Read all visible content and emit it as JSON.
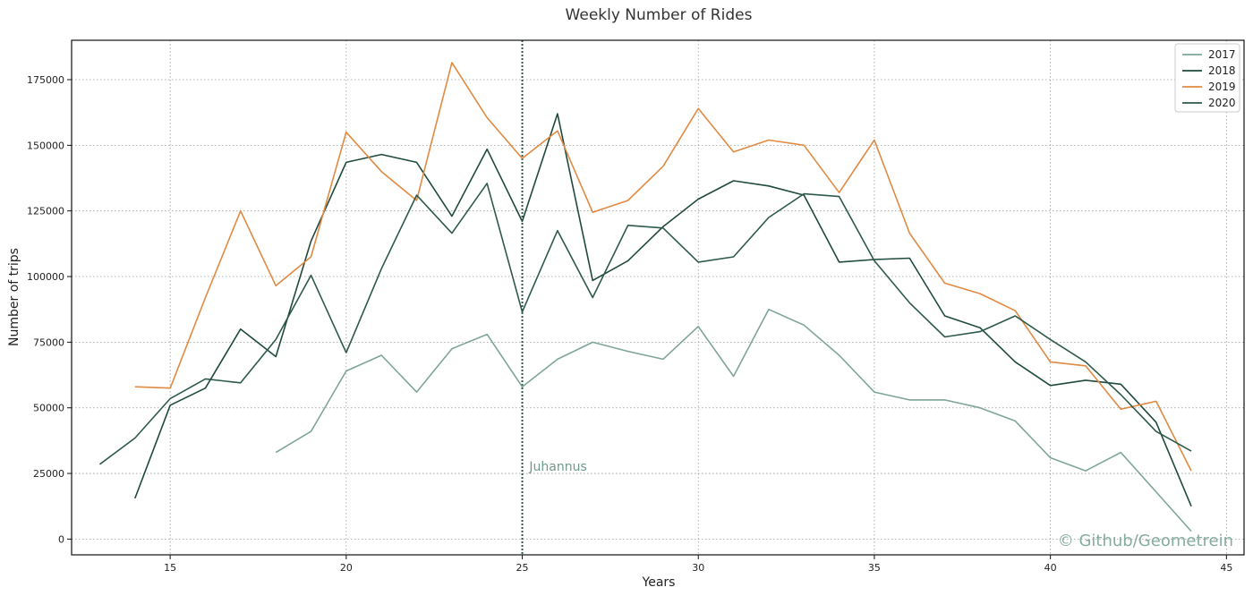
{
  "chart_data": {
    "type": "line",
    "title": "Weekly Number of Rides",
    "xlabel": "Years",
    "ylabel": "Number of trips",
    "xlim": [
      12.2,
      45.5
    ],
    "ylim": [
      -6000,
      190000
    ],
    "xticks": [
      15,
      20,
      25,
      30,
      35,
      40,
      45
    ],
    "yticks": [
      0,
      25000,
      50000,
      75000,
      100000,
      125000,
      150000,
      175000
    ],
    "grid": true,
    "legend": "top-right",
    "series": [
      {
        "name": "2017",
        "color": "#7fa597",
        "x": [
          18,
          19,
          20,
          21,
          22,
          23,
          24,
          25,
          26,
          27,
          28,
          29,
          30,
          31,
          32,
          33,
          34,
          35,
          36,
          37,
          38,
          39,
          40,
          41,
          42,
          43,
          44
        ],
        "y": [
          33000,
          41000,
          64000,
          70000,
          56000,
          72500,
          78000,
          58000,
          68500,
          75000,
          71500,
          68500,
          81000,
          62000,
          87500,
          81500,
          70000,
          56000,
          53000,
          53000,
          50000,
          45000,
          31000,
          26000,
          33000,
          18000,
          3000
        ]
      },
      {
        "name": "2018",
        "color": "#1f4a3d",
        "x": [
          14,
          15,
          16,
          17,
          18,
          19,
          20,
          21,
          22,
          23,
          24,
          25,
          26,
          27,
          28,
          29,
          30,
          31,
          32,
          33,
          34,
          35,
          36,
          37,
          38,
          39,
          40,
          41,
          42,
          43,
          44
        ],
        "y": [
          15500,
          51000,
          57500,
          80000,
          69500,
          113500,
          143500,
          146500,
          143500,
          123000,
          148500,
          121000,
          162000,
          98500,
          106000,
          119000,
          129500,
          136500,
          134500,
          131000,
          105500,
          106500,
          107000,
          85000,
          80500,
          67500,
          58500,
          60500,
          59000,
          44500,
          12500
        ]
      },
      {
        "name": "2019",
        "color": "#e08a42",
        "x": [
          14,
          15,
          16,
          17,
          18,
          19,
          20,
          21,
          22,
          23,
          24,
          25,
          26,
          27,
          28,
          29,
          30,
          31,
          32,
          33,
          34,
          35,
          36,
          37,
          38,
          39,
          40,
          41,
          42,
          43,
          44
        ],
        "y": [
          58000,
          57500,
          92000,
          125000,
          96500,
          107500,
          155000,
          140000,
          129000,
          181500,
          160500,
          145000,
          155500,
          124500,
          129000,
          142000,
          164000,
          147500,
          152000,
          150000,
          132000,
          152000,
          116500,
          97500,
          93500,
          87000,
          67500,
          66000,
          49500,
          52500,
          26000
        ]
      },
      {
        "name": "2020",
        "color": "#2e5a4a",
        "x": [
          13,
          14,
          15,
          16,
          17,
          18,
          19,
          20,
          21,
          22,
          23,
          24,
          25,
          26,
          27,
          28,
          29,
          30,
          31,
          32,
          33,
          34,
          35,
          36,
          37,
          38,
          39,
          40,
          41,
          42,
          43,
          44
        ],
        "y": [
          28500,
          38500,
          53500,
          61000,
          59500,
          76000,
          100500,
          71000,
          103000,
          131000,
          116500,
          135500,
          86500,
          117500,
          92000,
          119500,
          118500,
          105500,
          107500,
          122500,
          131500,
          130500,
          106000,
          90000,
          77000,
          79000,
          85000,
          76000,
          67500,
          55000,
          41000,
          33500
        ]
      }
    ],
    "annotations": [
      {
        "type": "vline",
        "x": 25,
        "color": "#2e5a4a",
        "label": "Juhannus",
        "label_x": 25.2,
        "label_y": 26000
      }
    ],
    "watermark": "© Github/Geometrein"
  }
}
